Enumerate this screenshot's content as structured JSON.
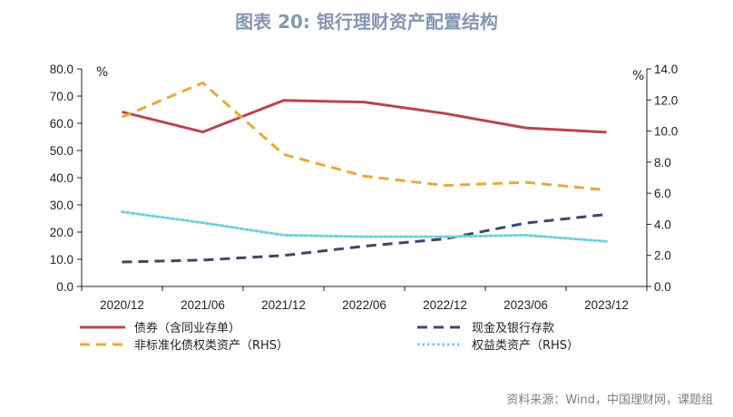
{
  "header": {
    "title": "图表 20: 银行理财资产配置结构"
  },
  "footer": {
    "source": "资料来源：Wind，中国理财网，课题组"
  },
  "chart_data": {
    "type": "line",
    "categories": [
      "2020/12",
      "2021/06",
      "2021/12",
      "2022/06",
      "2022/12",
      "2023/06",
      "2023/12"
    ],
    "y_left": {
      "unit": "%",
      "ylim": [
        0,
        80
      ],
      "ticks": [
        "0.0",
        "10.0",
        "20.0",
        "30.0",
        "40.0",
        "50.0",
        "60.0",
        "70.0",
        "80.0"
      ]
    },
    "y_right": {
      "unit": "%",
      "ylim": [
        0,
        14
      ],
      "ticks": [
        "0.0",
        "2.0",
        "4.0",
        "6.0",
        "8.0",
        "10.0",
        "12.0",
        "14.0"
      ]
    },
    "grid": false,
    "legend_position": "bottom",
    "series": [
      {
        "name": "债券（含同业存单）",
        "axis": "left",
        "values": [
          64.2,
          56.8,
          68.4,
          67.8,
          63.6,
          58.3,
          56.7
        ],
        "color": "#b5474f",
        "style": "solid"
      },
      {
        "name": "现金及银行存款",
        "axis": "left",
        "values": [
          9.0,
          9.7,
          11.4,
          14.8,
          17.5,
          23.3,
          26.5
        ],
        "color": "#3b4a66",
        "style": "dashed"
      },
      {
        "name": "非标准化债权类资产（RHS）",
        "axis": "right",
        "values": [
          10.9,
          13.1,
          8.5,
          7.1,
          6.5,
          6.7,
          6.2
        ],
        "color": "#e8a93a",
        "style": "dashed"
      },
      {
        "name": "权益类资产（RHS）",
        "axis": "right",
        "values": [
          4.8,
          4.1,
          3.3,
          3.2,
          3.2,
          3.3,
          2.9
        ],
        "color": "#6fd0dc",
        "style": "dotted"
      }
    ]
  }
}
